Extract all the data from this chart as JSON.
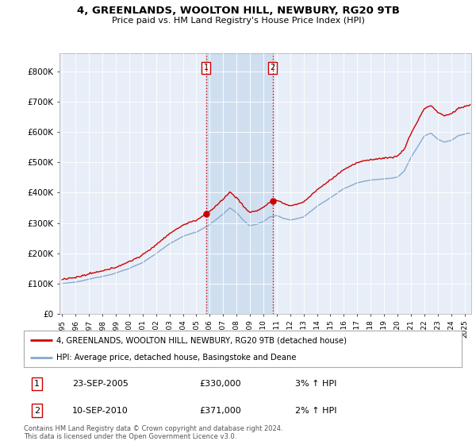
{
  "title": "4, GREENLANDS, WOOLTON HILL, NEWBURY, RG20 9TB",
  "subtitle": "Price paid vs. HM Land Registry's House Price Index (HPI)",
  "legend_line1": "4, GREENLANDS, WOOLTON HILL, NEWBURY, RG20 9TB (detached house)",
  "legend_line2": "HPI: Average price, detached house, Basingstoke and Deane",
  "footer": "Contains HM Land Registry data © Crown copyright and database right 2024.\nThis data is licensed under the Open Government Licence v3.0.",
  "transaction1_date": "23-SEP-2005",
  "transaction1_price": "£330,000",
  "transaction1_hpi": "3% ↑ HPI",
  "transaction2_date": "10-SEP-2010",
  "transaction2_price": "£371,000",
  "transaction2_hpi": "2% ↑ HPI",
  "price_line_color": "#cc0000",
  "hpi_line_color": "#88aacc",
  "background_color": "#ffffff",
  "plot_bg_color": "#e8eef8",
  "shade_color": "#d0dff0",
  "grid_color": "#ffffff",
  "vline_color": "#cc0000",
  "marker1_x": 2005.72,
  "marker1_y": 330000,
  "marker2_x": 2010.69,
  "marker2_y": 371000,
  "ylim": [
    0,
    860000
  ],
  "xlim_start": 1994.8,
  "xlim_end": 2025.5,
  "yticks": [
    0,
    100000,
    200000,
    300000,
    400000,
    500000,
    600000,
    700000,
    800000
  ],
  "ytick_labels": [
    "£0",
    "£100K",
    "£200K",
    "£300K",
    "£400K",
    "£500K",
    "£600K",
    "£700K",
    "£800K"
  ],
  "xtick_years": [
    1995,
    1996,
    1997,
    1998,
    1999,
    2000,
    2001,
    2002,
    2003,
    2004,
    2005,
    2006,
    2007,
    2008,
    2009,
    2010,
    2011,
    2012,
    2013,
    2014,
    2015,
    2016,
    2017,
    2018,
    2019,
    2020,
    2021,
    2022,
    2023,
    2024,
    2025
  ]
}
